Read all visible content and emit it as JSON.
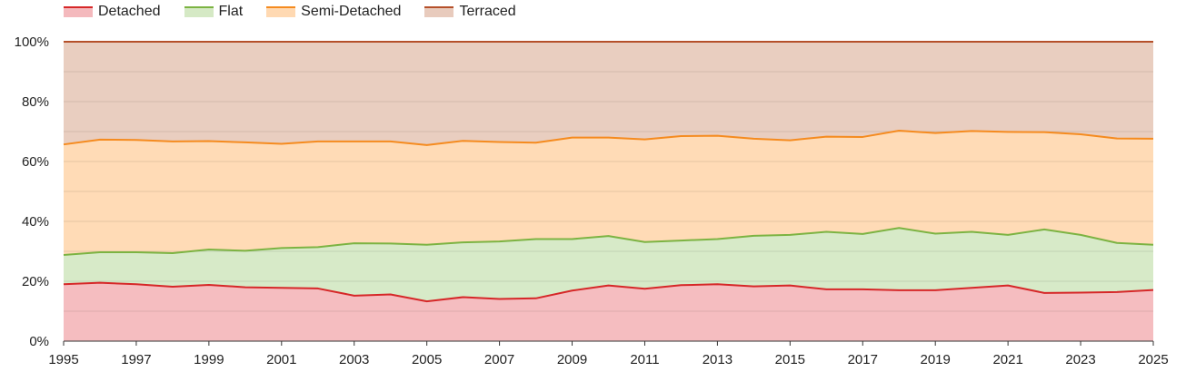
{
  "chart_data": {
    "type": "area",
    "stacked": true,
    "percent": true,
    "x": [
      1995,
      1996,
      1997,
      1998,
      1999,
      2000,
      2001,
      2002,
      2003,
      2004,
      2005,
      2006,
      2007,
      2008,
      2009,
      2010,
      2011,
      2012,
      2013,
      2014,
      2015,
      2016,
      2017,
      2018,
      2019,
      2020,
      2021,
      2022,
      2023,
      2024,
      2025
    ],
    "x_tick_labels": [
      "1995",
      "1997",
      "1999",
      "2001",
      "2003",
      "2005",
      "2007",
      "2009",
      "2011",
      "2013",
      "2015",
      "2017",
      "2019",
      "2021",
      "2023",
      "2025"
    ],
    "y_tick_labels": [
      "0%",
      "20%",
      "40%",
      "60%",
      "80%",
      "100%"
    ],
    "ylim": [
      0,
      100
    ],
    "grid": true,
    "legend_position": "top-left",
    "series": [
      {
        "name": "Detached",
        "line_color": "#d62728",
        "fill_color": "#f4b9bd",
        "values": [
          19.0,
          19.5,
          19.0,
          18.2,
          18.8,
          18.0,
          17.8,
          17.6,
          15.2,
          15.6,
          13.3,
          14.7,
          14.1,
          14.3,
          16.9,
          18.6,
          17.5,
          18.7,
          19.0,
          18.3,
          18.6,
          17.3,
          17.3,
          17.0,
          17.0,
          17.8,
          18.6,
          16.1,
          16.2,
          16.4,
          17.1
        ]
      },
      {
        "name": "Flat",
        "line_color": "#7cb342",
        "fill_color": "#d5e9c5",
        "values": [
          9.8,
          10.2,
          10.7,
          11.2,
          11.8,
          12.2,
          13.3,
          13.8,
          17.5,
          17.0,
          18.9,
          18.3,
          19.2,
          19.8,
          17.2,
          16.5,
          15.6,
          14.9,
          15.1,
          16.9,
          16.9,
          19.2,
          18.5,
          20.8,
          18.9,
          18.7,
          16.9,
          21.2,
          19.3,
          16.4,
          15.1
        ]
      },
      {
        "name": "Semi-Detached",
        "line_color": "#f58b1f",
        "fill_color": "#ffd9b2",
        "values": [
          36.9,
          37.6,
          37.5,
          37.3,
          36.2,
          36.2,
          34.8,
          35.3,
          34.0,
          34.1,
          33.3,
          33.9,
          33.2,
          32.2,
          33.9,
          32.9,
          34.3,
          34.9,
          34.5,
          32.4,
          31.6,
          31.8,
          32.4,
          32.5,
          33.6,
          33.7,
          34.4,
          32.5,
          33.6,
          34.9,
          35.4
        ]
      },
      {
        "name": "Terraced",
        "line_color": "#b5502a",
        "fill_color": "#e8cbbd",
        "values": [
          34.3,
          32.7,
          32.8,
          33.3,
          33.2,
          33.6,
          34.1,
          33.3,
          33.3,
          33.3,
          34.5,
          33.1,
          33.5,
          33.7,
          32.0,
          32.0,
          32.6,
          31.5,
          31.4,
          32.4,
          32.9,
          31.7,
          31.8,
          29.7,
          30.5,
          29.8,
          30.1,
          30.2,
          30.9,
          32.3,
          32.4
        ]
      }
    ]
  }
}
